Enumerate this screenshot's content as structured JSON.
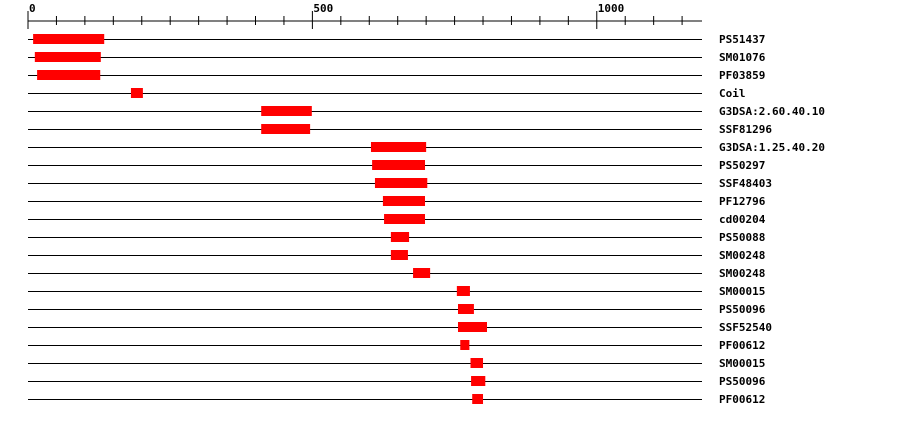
{
  "chart_data": {
    "type": "domain-map",
    "axis": {
      "min": 0,
      "max": 1185,
      "major_ticks": [
        0,
        500,
        1000
      ],
      "minor_tick_step": 50,
      "tick_labels": [
        "0",
        "500",
        "1000"
      ]
    },
    "bar_color": "#ff0000",
    "features": [
      {
        "label": "PS51437",
        "start": 9,
        "end": 134
      },
      {
        "label": "SM01076",
        "start": 12,
        "end": 128
      },
      {
        "label": "PF03859",
        "start": 16,
        "end": 127
      },
      {
        "label": "Coil",
        "start": 181,
        "end": 202
      },
      {
        "label": "G3DSA:2.60.40.10",
        "start": 410,
        "end": 499
      },
      {
        "label": "SSF81296",
        "start": 410,
        "end": 496
      },
      {
        "label": "G3DSA:1.25.40.20",
        "start": 603,
        "end": 700
      },
      {
        "label": "PS50297",
        "start": 605,
        "end": 698
      },
      {
        "label": "SSF48403",
        "start": 610,
        "end": 702
      },
      {
        "label": "PF12796",
        "start": 624,
        "end": 698
      },
      {
        "label": "cd00204",
        "start": 626,
        "end": 698
      },
      {
        "label": "PS50088",
        "start": 638,
        "end": 670
      },
      {
        "label": "SM00248",
        "start": 638,
        "end": 668
      },
      {
        "label": "SM00248",
        "start": 677,
        "end": 707
      },
      {
        "label": "SM00015",
        "start": 754,
        "end": 777
      },
      {
        "label": "PS50096",
        "start": 756,
        "end": 784
      },
      {
        "label": "SSF52540",
        "start": 756,
        "end": 807
      },
      {
        "label": "PF00612",
        "start": 760,
        "end": 776
      },
      {
        "label": "SM00015",
        "start": 778,
        "end": 800
      },
      {
        "label": "PS50096",
        "start": 779,
        "end": 804
      },
      {
        "label": "PF00612",
        "start": 781,
        "end": 800
      }
    ]
  }
}
